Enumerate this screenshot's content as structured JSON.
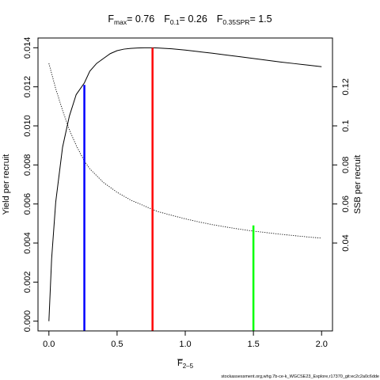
{
  "chart_data": {
    "type": "line",
    "title": {
      "parts": [
        {
          "main": "F",
          "sub": "max",
          "value": "= 0.76"
        },
        {
          "main": "F",
          "sub": "0.1",
          "value": "= 0.26"
        },
        {
          "main": "F",
          "sub": "0.35SPR",
          "value": "= 1.5"
        }
      ]
    },
    "xlabel": {
      "main": "F",
      "sub": "2–5",
      "overline": true
    },
    "ylabel_left": "Yield per recruit",
    "ylabel_right": "SSB per recruit",
    "xlim": [
      -0.08,
      2.08
    ],
    "ylim_left": [
      -0.0005,
      0.0145
    ],
    "ylim_right": [
      -0.005,
      0.145
    ],
    "x_ticks": [
      0,
      0.5,
      1,
      1.5,
      2
    ],
    "x_tick_labels": [
      "0.0",
      "0.5",
      "1.0",
      "1.5",
      "2.0"
    ],
    "y_left_ticks": [
      0,
      0.002,
      0.004,
      0.006,
      0.008,
      0.01,
      0.012,
      0.014
    ],
    "y_left_tick_labels": [
      "0.000",
      "0.002",
      "0.004",
      "0.006",
      "0.008",
      "0.010",
      "0.012",
      "0.014"
    ],
    "y_right_ticks": [
      0.04,
      0.06,
      0.08,
      0.1,
      0.12
    ],
    "y_right_tick_labels": [
      "0.04",
      "0.06",
      "0.08",
      "0.1",
      "0.12"
    ],
    "series": [
      {
        "axis": "left",
        "style": "solid",
        "x": [
          0,
          0.02,
          0.05,
          0.1,
          0.15,
          0.2,
          0.26,
          0.3,
          0.35,
          0.4,
          0.45,
          0.5,
          0.55,
          0.6,
          0.65,
          0.7,
          0.76,
          0.8,
          0.9,
          1.0,
          1.1,
          1.2,
          1.3,
          1.4,
          1.5,
          1.6,
          1.7,
          1.8,
          1.9,
          2.0
        ],
        "y": [
          0,
          0.0032,
          0.0061,
          0.0089,
          0.0105,
          0.0116,
          0.0122,
          0.0128,
          0.0132,
          0.01345,
          0.0137,
          0.01385,
          0.01393,
          0.01397,
          0.01399,
          0.014,
          0.014,
          0.01399,
          0.01395,
          0.01388,
          0.0138,
          0.01372,
          0.01363,
          0.01354,
          0.01345,
          0.01336,
          0.01327,
          0.01319,
          0.01311,
          0.01303
        ]
      },
      {
        "axis": "right",
        "style": "dotted",
        "x": [
          0,
          0.05,
          0.1,
          0.15,
          0.2,
          0.26,
          0.3,
          0.4,
          0.5,
          0.6,
          0.76,
          0.8,
          0.9,
          1.0,
          1.1,
          1.2,
          1.3,
          1.4,
          1.5,
          1.6,
          1.7,
          1.8,
          1.9,
          2.0
        ],
        "y": [
          0.132,
          0.119,
          0.108,
          0.098,
          0.09,
          0.082,
          0.078,
          0.071,
          0.066,
          0.062,
          0.0572,
          0.0561,
          0.0542,
          0.0524,
          0.0508,
          0.0494,
          0.0482,
          0.0471,
          0.0461,
          0.0453,
          0.0445,
          0.0438,
          0.0431,
          0.0425
        ]
      }
    ],
    "reference_lines": [
      {
        "x": 0.26,
        "y_top": 0.0121,
        "color": "#0000ff"
      },
      {
        "x": 0.76,
        "y_top": 0.014,
        "color": "#ff0000"
      },
      {
        "x": 1.5,
        "y_top": 0.0049,
        "color": "#00ff00"
      }
    ],
    "grid": false,
    "legend": "none"
  },
  "footer": "stockassessment.org,whg.7b-ce-k_WGCSE23_Explore,r17370_git:ec2c2a0c6dde"
}
